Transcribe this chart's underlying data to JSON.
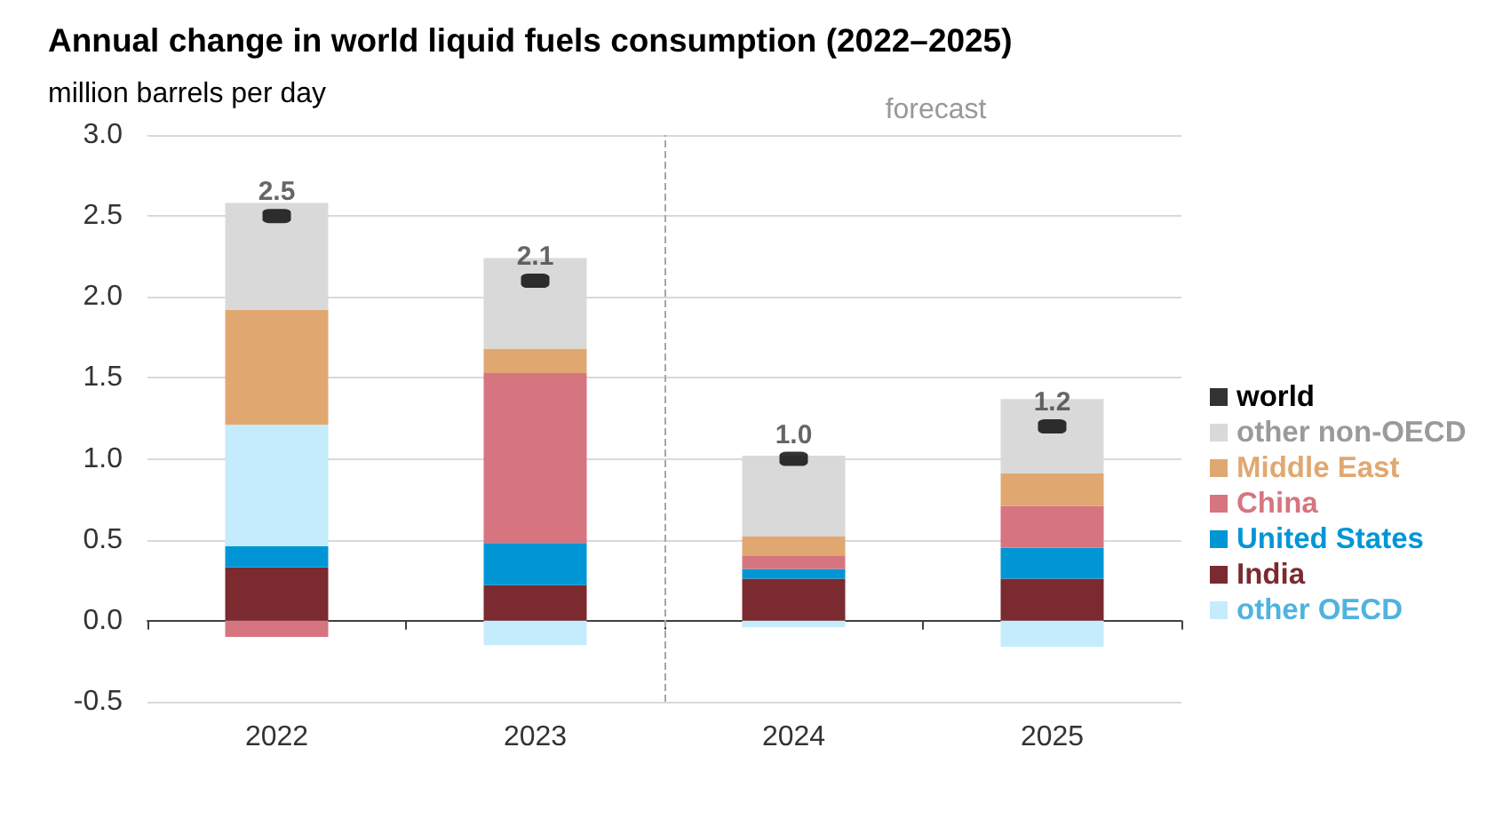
{
  "chart_data": {
    "type": "bar",
    "title": "Annual change in world liquid fuels consumption (2022–2025)",
    "ylabel": "million barrels per day",
    "categories": [
      "2022",
      "2023",
      "2024",
      "2025"
    ],
    "stacked": true,
    "series": [
      {
        "name": "India",
        "color": "#7b2a30",
        "values": [
          0.33,
          0.22,
          0.26,
          0.26
        ]
      },
      {
        "name": "United States",
        "color": "#0096d6",
        "values": [
          0.13,
          0.26,
          0.06,
          0.19
        ]
      },
      {
        "name": "other OECD",
        "color": "#c5ecfc",
        "values": [
          0.75,
          -0.15,
          -0.04,
          -0.16
        ]
      },
      {
        "name": "China",
        "color": "#d67580",
        "values": [
          -0.1,
          1.05,
          0.08,
          0.26
        ]
      },
      {
        "name": "Middle East",
        "color": "#e0a870",
        "values": [
          0.71,
          0.15,
          0.12,
          0.2
        ]
      },
      {
        "name": "other non-OECD",
        "color": "#d9d9d9",
        "values": [
          0.66,
          0.56,
          0.5,
          0.46
        ]
      },
      {
        "name": "world",
        "type": "scatter",
        "color": "#000000",
        "marker": "square",
        "values": [
          2.5,
          2.1,
          1.0,
          1.2
        ],
        "value_labels": [
          "2.5",
          "2.1",
          "1.0",
          "1.2"
        ]
      }
    ],
    "ylim": [
      -0.5,
      3.0
    ],
    "yticks": [
      {
        "value": -0.5,
        "label": "-0.5"
      },
      {
        "value": 0,
        "label": "0.0"
      },
      {
        "value": 0.5,
        "label": "0.5"
      },
      {
        "value": 1,
        "label": "1.0"
      },
      {
        "value": 1.5,
        "label": "1.5"
      },
      {
        "value": 2,
        "label": "2.0"
      },
      {
        "value": 2.5,
        "label": "2.5"
      },
      {
        "value": 3,
        "label": "3.0"
      }
    ],
    "grid": "y",
    "legend": "right",
    "ref_lines": [
      {
        "axis": "x",
        "value": "2024",
        "label": "forecast",
        "line_style": "dashed",
        "color": "#a6a6a6"
      }
    ]
  }
}
